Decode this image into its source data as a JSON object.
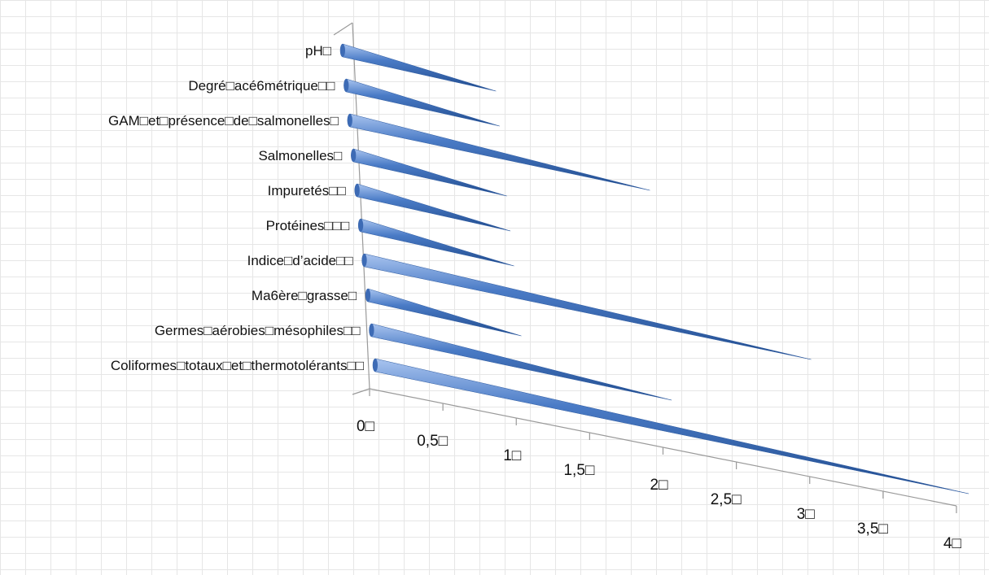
{
  "chart_data": {
    "type": "bar",
    "style": "3d-cone-horizontal",
    "orientation": "horizontal",
    "title": "",
    "xlabel": "",
    "ylabel": "",
    "categories": [
      "pH□",
      "Degré□acé6métrique□□",
      "GAM□et□présence□de□salmonelles□",
      "Salmonelles□",
      "Impuretés□□",
      "Protéines□□□",
      "Indice□d’acide□□",
      "Ma6ère□grasse□",
      "Germes□aérobies□mésophiles□□",
      "Coliformes□totaux□et□thermotolérants□□"
    ],
    "values": [
      1,
      1,
      2,
      1,
      1,
      1,
      3,
      1,
      2,
      4
    ],
    "xlim": [
      0,
      4
    ],
    "xticks": [
      "0□",
      "0,5□",
      "1□",
      "1,5□",
      "2□",
      "2,5□",
      "3□",
      "3,5□",
      "4□"
    ],
    "grid": true,
    "legend": "none",
    "colors": {
      "cone": "#4a7bc6",
      "cone_light": "#a9c4ef",
      "cone_dark": "#1f4a8c",
      "axis": "#9a9a9a"
    }
  }
}
